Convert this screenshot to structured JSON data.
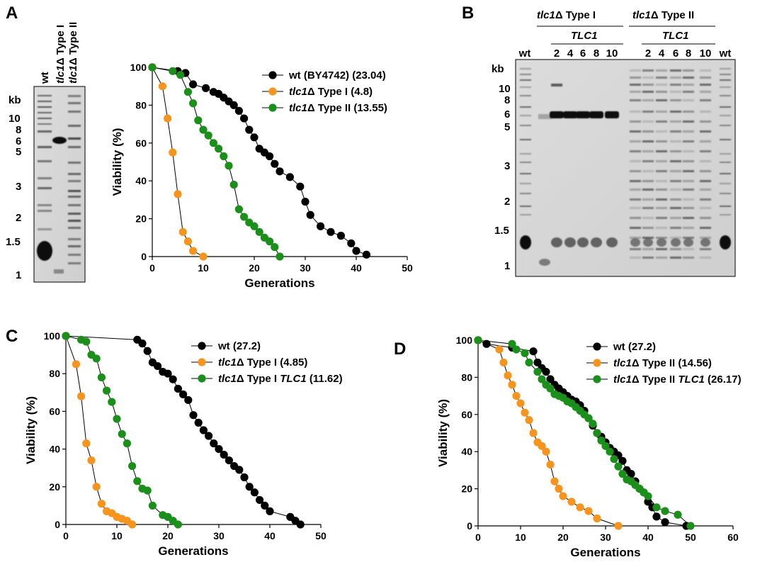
{
  "panel_labels": [
    "A",
    "B",
    "C",
    "D"
  ],
  "gelA": {
    "lanes": [
      "wt",
      "tlc1Δ Type I",
      "tlc1Δ Type II"
    ],
    "kb_label": "kb",
    "markers": [
      "10",
      "8",
      "6",
      "5",
      "3",
      "2",
      "1.5",
      "1"
    ]
  },
  "gelB": {
    "group1": {
      "gene": "tlc1",
      "suffix": "Δ Type I"
    },
    "group2": {
      "gene": "tlc1",
      "suffix": "Δ Type II"
    },
    "tlc1_label": "TLC1",
    "lanes": [
      "wt",
      "2",
      "4",
      "6",
      "8",
      "10",
      "2",
      "4",
      "6",
      "8",
      "10",
      "wt"
    ],
    "kb_label": "kb",
    "markers": [
      "10",
      "8",
      "6",
      "5",
      "3",
      "2",
      "1.5",
      "1"
    ]
  },
  "chart_data": [
    {
      "panel": "A",
      "type": "line",
      "xlabel": "Generations",
      "ylabel": "Viability (%)",
      "xlim": [
        0,
        50
      ],
      "ylim": [
        0,
        100
      ],
      "xticks": [
        0,
        10,
        20,
        30,
        40,
        50
      ],
      "yticks": [
        0,
        20,
        40,
        60,
        80,
        100
      ],
      "legend_position": "top-right",
      "series": [
        {
          "name": "wt (BY4742) (23.04)",
          "legend": {
            "pre": "wt (BY4742) (23.04)",
            "ital": "",
            "post": ""
          },
          "color": "#000000",
          "x": [
            0,
            5,
            6.5,
            8,
            10.5,
            12,
            13,
            14,
            15,
            16,
            17,
            18,
            19,
            20,
            21,
            22,
            23,
            24,
            25,
            27,
            29,
            30,
            31,
            33,
            35,
            37,
            39,
            40,
            42
          ],
          "y": [
            100,
            98,
            97,
            91,
            89,
            87,
            86,
            84,
            82,
            80,
            77,
            73,
            67,
            63,
            57,
            55,
            53,
            49,
            45,
            42,
            37,
            29,
            22,
            16,
            13,
            11,
            7,
            3,
            1
          ]
        },
        {
          "name": "tlc1Δ Type I (4.8)",
          "legend": {
            "pre": "",
            "ital": "tlc1",
            "post": "Δ Type I (4.8)"
          },
          "color": "#f7941d",
          "x": [
            0,
            2,
            3,
            4,
            5,
            6,
            7,
            8,
            10
          ],
          "y": [
            100,
            90,
            73,
            55,
            33,
            13,
            8,
            3,
            0
          ]
        },
        {
          "name": "tlc1Δ Type II (13.55)",
          "legend": {
            "pre": "",
            "ital": "tlc1",
            "post": "Δ Type II (13.55)"
          },
          "color": "#1a8f1a",
          "x": [
            0,
            4,
            5.5,
            7,
            8,
            9,
            10,
            11,
            12,
            13,
            14,
            15,
            16,
            17,
            18,
            19,
            20,
            21,
            22,
            23,
            24,
            25
          ],
          "y": [
            100,
            98,
            96,
            87,
            81,
            72,
            67,
            64,
            60,
            57,
            53,
            48,
            38,
            25,
            21,
            18,
            16,
            13,
            10,
            8,
            5,
            0
          ]
        }
      ]
    },
    {
      "panel": "C",
      "type": "line",
      "xlabel": "Generations",
      "ylabel": "Viability (%)",
      "xlim": [
        0,
        50
      ],
      "ylim": [
        0,
        100
      ],
      "xticks": [
        0,
        10,
        20,
        30,
        40,
        50
      ],
      "yticks": [
        0,
        20,
        40,
        60,
        80,
        100
      ],
      "legend_position": "top-right",
      "series": [
        {
          "name": "wt (27.2)",
          "legend": {
            "pre": "wt (27.2)",
            "ital": "",
            "post": ""
          },
          "color": "#000000",
          "x": [
            0,
            14,
            15,
            16,
            17,
            18,
            19,
            20,
            21,
            22,
            23,
            24,
            25,
            26,
            27,
            28,
            29,
            30,
            31,
            32,
            33,
            34,
            35,
            36,
            37,
            38,
            39,
            40,
            44,
            45,
            46
          ],
          "y": [
            100,
            98,
            96,
            92,
            86,
            84,
            81,
            80,
            77,
            72,
            69,
            66,
            58,
            54,
            50,
            47,
            43,
            40,
            37,
            34,
            31,
            29,
            25,
            20,
            17,
            13,
            10,
            7,
            4,
            2,
            0
          ]
        },
        {
          "name": "tlc1Δ Type I (4.85)",
          "legend": {
            "pre": "",
            "ital": "tlc1",
            "post": "Δ Type I (4.85)"
          },
          "color": "#f7941d",
          "x": [
            0,
            2,
            3,
            4,
            5,
            6,
            7,
            8,
            9,
            10,
            11,
            12,
            13
          ],
          "y": [
            100,
            85,
            68,
            43,
            34,
            20,
            11,
            7,
            6,
            4,
            3,
            2,
            0
          ]
        },
        {
          "name": "tlc1Δ Type I TLC1 (11.62)",
          "legend": {
            "pre": "",
            "ital": "tlc1",
            "post": "Δ Type I ",
            "ital2": "TLC1",
            "post2": " (11.62)"
          },
          "color": "#1a8f1a",
          "x": [
            0,
            3,
            4,
            5,
            6,
            7,
            8,
            9,
            10,
            11,
            12,
            13,
            14,
            15,
            16,
            17,
            19,
            20,
            21,
            22
          ],
          "y": [
            100,
            98,
            97,
            90,
            88,
            78,
            71,
            65,
            56,
            48,
            43,
            31,
            23,
            19,
            18,
            10,
            5,
            4,
            2,
            0
          ]
        }
      ]
    },
    {
      "panel": "D",
      "type": "line",
      "xlabel": "Generations",
      "ylabel": "Viability (%)",
      "xlim": [
        0,
        60
      ],
      "ylim": [
        0,
        100
      ],
      "xticks": [
        0,
        10,
        20,
        30,
        40,
        50,
        60
      ],
      "yticks": [
        0,
        20,
        40,
        60,
        80,
        100
      ],
      "legend_position": "top-right",
      "series": [
        {
          "name": "wt (27.2)",
          "legend": {
            "pre": "wt (27.2)",
            "ital": "",
            "post": ""
          },
          "color": "#000000",
          "x": [
            0,
            2,
            8,
            13,
            14,
            15,
            16,
            17,
            18,
            19,
            20,
            21,
            22,
            23,
            24,
            25,
            26,
            27,
            28,
            29,
            30,
            31,
            32,
            33,
            34,
            35,
            36,
            37,
            38,
            39,
            40,
            41,
            42,
            44,
            49
          ],
          "y": [
            100,
            98,
            96,
            94,
            88,
            85,
            83,
            79,
            76,
            74,
            72,
            70,
            68,
            67,
            65,
            62,
            58,
            54,
            50,
            48,
            45,
            42,
            40,
            38,
            35,
            30,
            28,
            24,
            20,
            18,
            13,
            10,
            5,
            2,
            0
          ]
        },
        {
          "name": "tlc1Δ Type II (14.56)",
          "legend": {
            "pre": "",
            "ital": "tlc1",
            "post": "Δ Type II (14.56)"
          },
          "color": "#f7941d",
          "x": [
            0,
            5,
            6,
            7,
            8,
            9,
            10,
            11,
            12,
            13,
            14,
            15,
            16,
            17,
            18,
            19,
            20,
            22,
            24,
            26,
            28,
            33
          ],
          "y": [
            100,
            95,
            88,
            81,
            76,
            70,
            66,
            61,
            57,
            50,
            45,
            43,
            40,
            33,
            24,
            20,
            16,
            13,
            10,
            8,
            4,
            0
          ]
        },
        {
          "name": "tlc1Δ Type II TLC1 (26.17)",
          "legend": {
            "pre": "",
            "ital": "tlc1",
            "post": "Δ Type II ",
            "ital2": "TLC1",
            "post2": " (26.17)"
          },
          "color": "#1a8f1a",
          "x": [
            0,
            8,
            9,
            11,
            12,
            14,
            15,
            16,
            17,
            18,
            19,
            20,
            21,
            22,
            23,
            24,
            25,
            26,
            27,
            28,
            29,
            30,
            31,
            32,
            33,
            34,
            35,
            36,
            37,
            38,
            39,
            40,
            42,
            44,
            47,
            50
          ],
          "y": [
            100,
            98,
            95,
            93,
            88,
            83,
            79,
            76,
            74,
            71,
            70,
            69,
            67,
            66,
            64,
            62,
            60,
            58,
            55,
            50,
            46,
            43,
            40,
            36,
            32,
            28,
            25,
            24,
            22,
            20,
            18,
            16,
            10,
            8,
            6,
            0
          ]
        }
      ]
    }
  ]
}
